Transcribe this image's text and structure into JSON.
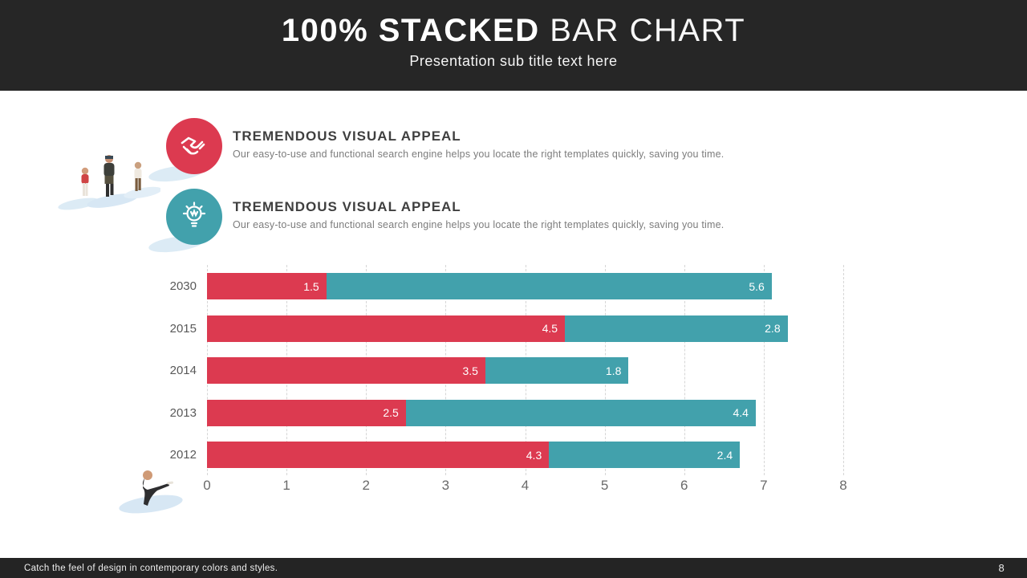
{
  "colors": {
    "header_bg": "#262626",
    "footer_bg": "#242424",
    "series_red": "#dc3a50",
    "series_teal": "#42a1ac",
    "grid": "#d6d6d6",
    "axis_label": "#595959",
    "shadow_blue": "#dcebf5"
  },
  "header": {
    "title_bold": "100% STACKED",
    "title_light": " BAR CHART",
    "subtitle": "Presentation sub title text here"
  },
  "features": [
    {
      "icon": "handshake-icon",
      "color": "#dc3a50",
      "heading": "TREMENDOUS VISUAL APPEAL",
      "description": "Our easy-to-use and functional search engine helps you locate the right templates quickly, saving you time."
    },
    {
      "icon": "lightbulb-icon",
      "color": "#42a1ac",
      "heading": "TREMENDOUS VISUAL APPEAL",
      "description": "Our easy-to-use and functional search engine helps you locate the right templates quickly, saving you time."
    }
  ],
  "chart_data": {
    "type": "bar",
    "orientation": "horizontal",
    "stacked": true,
    "title": "",
    "xlabel": "",
    "ylabel": "",
    "categories": [
      "2030",
      "2015",
      "2014",
      "2013",
      "2012"
    ],
    "series": [
      {
        "name": "red-series",
        "color": "#dc3a50",
        "values": [
          1.5,
          4.5,
          3.5,
          2.5,
          4.3
        ]
      },
      {
        "name": "teal-series",
        "color": "#42a1ac",
        "values": [
          5.6,
          2.8,
          1.8,
          4.4,
          2.4
        ]
      }
    ],
    "xlim": [
      0,
      8
    ],
    "xticks": [
      "0",
      "1",
      "2",
      "3",
      "4",
      "5",
      "6",
      "7",
      "8"
    ],
    "grid": true,
    "legend": false
  },
  "footer": {
    "text": "Catch the feel of design in contemporary colors and styles.",
    "page_number": "8"
  }
}
